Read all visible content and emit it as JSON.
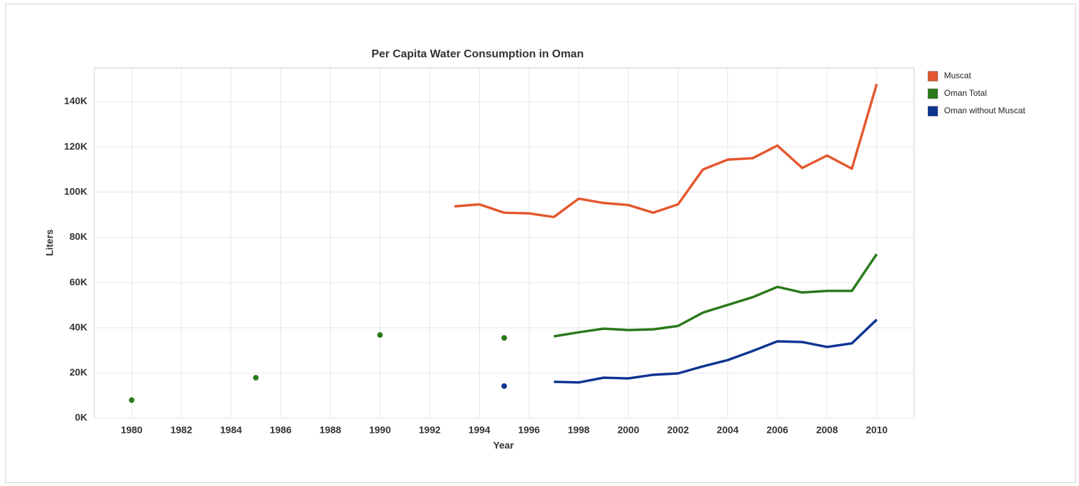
{
  "chart_data": {
    "type": "line",
    "title": "Per Capita Water Consumption in Oman",
    "x_label": "Year",
    "y_label": "Liters",
    "x": [
      1980,
      1981,
      1982,
      1983,
      1984,
      1985,
      1986,
      1987,
      1988,
      1989,
      1990,
      1991,
      1992,
      1993,
      1994,
      1995,
      1996,
      1997,
      1998,
      1999,
      2000,
      2001,
      2002,
      2003,
      2004,
      2005,
      2006,
      2007,
      2008,
      2009,
      2010
    ],
    "series": [
      {
        "name": "Muscat",
        "color": "#e4572e",
        "values": [
          null,
          null,
          null,
          null,
          null,
          null,
          null,
          null,
          null,
          null,
          null,
          null,
          null,
          93700,
          94600,
          90900,
          90600,
          89000,
          97100,
          95200,
          94300,
          90900,
          94600,
          110000,
          114400,
          115000,
          120600,
          110700,
          116200,
          110400,
          147800
        ]
      },
      {
        "name": "Oman Total",
        "color": "#2a7a1a",
        "values": [
          8000,
          null,
          null,
          null,
          null,
          17900,
          null,
          null,
          null,
          null,
          36800,
          null,
          null,
          null,
          null,
          35500,
          null,
          36200,
          38000,
          39600,
          39000,
          39300,
          40800,
          46700,
          50100,
          53500,
          58100,
          55600,
          56300,
          56300,
          72600
        ]
      },
      {
        "name": "Oman without Muscat",
        "color": "#0d3591",
        "values": [
          null,
          null,
          null,
          null,
          null,
          null,
          null,
          null,
          null,
          null,
          null,
          null,
          null,
          null,
          null,
          14200,
          null,
          16100,
          15800,
          17900,
          17600,
          19200,
          19800,
          22900,
          25700,
          29700,
          34000,
          33700,
          31500,
          33100,
          43600
        ]
      }
    ],
    "xlim": [
      1978.5,
      2011.5
    ],
    "xticks": [
      1980,
      1982,
      1984,
      1986,
      1988,
      1990,
      1992,
      1994,
      1996,
      1998,
      2000,
      2002,
      2004,
      2006,
      2008,
      2010
    ],
    "ylim": [
      0,
      155000
    ],
    "yticks": [
      {
        "value": 0,
        "label": "0K"
      },
      {
        "value": 20000,
        "label": "20K"
      },
      {
        "value": 40000,
        "label": "40K"
      },
      {
        "value": 60000,
        "label": "60K"
      },
      {
        "value": 80000,
        "label": "80K"
      },
      {
        "value": 100000,
        "label": "100K"
      },
      {
        "value": 120000,
        "label": "120K"
      },
      {
        "value": 140000,
        "label": "140K"
      }
    ],
    "grid": true,
    "legend": "right"
  }
}
